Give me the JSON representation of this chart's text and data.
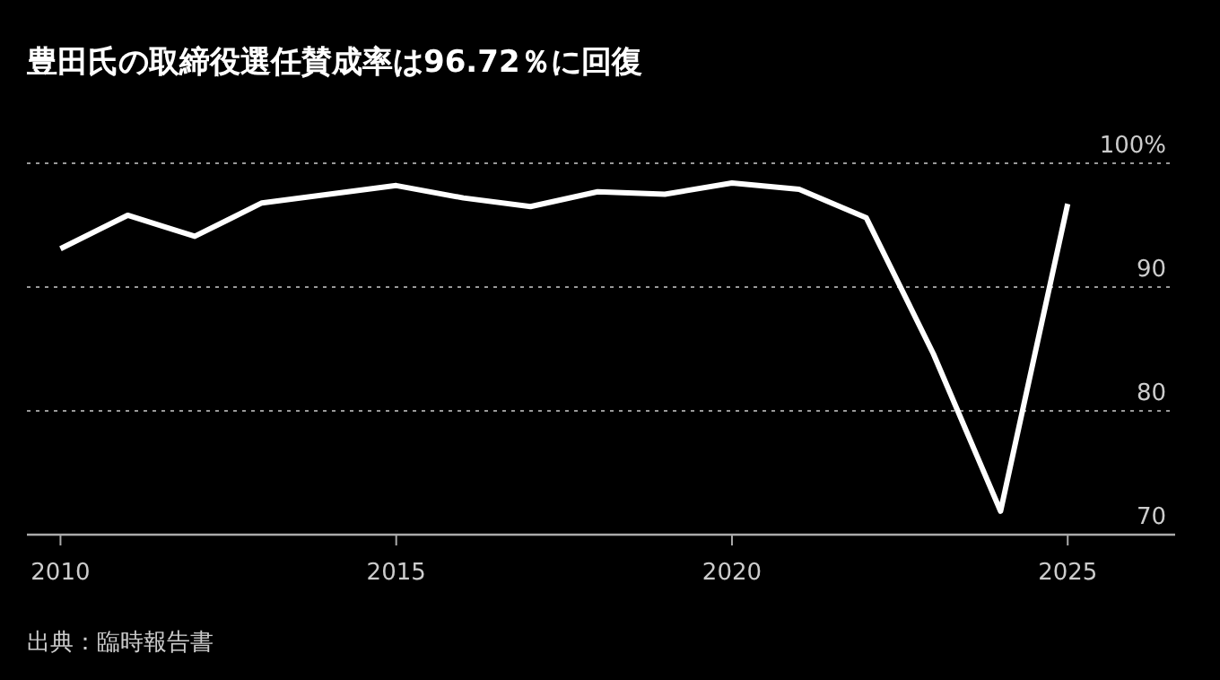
{
  "chart_data": {
    "type": "line",
    "title": "豊田氏の取締役選任賛成率は96.72％に回復",
    "x": [
      2010,
      2011,
      2012,
      2013,
      2014,
      2015,
      2016,
      2017,
      2018,
      2019,
      2020,
      2021,
      2022,
      2023,
      2024,
      2025
    ],
    "series": [
      {
        "color": "#ffffff",
        "values": [
          93.1,
          95.8,
          94.1,
          96.8,
          97.5,
          98.2,
          97.2,
          96.5,
          97.7,
          97.5,
          98.4,
          97.9,
          95.6,
          84.6,
          71.9,
          96.72
        ]
      }
    ],
    "xlim": [
      2009.5,
      2026.6
    ],
    "xticks": [
      2010,
      2015,
      2020,
      2025
    ],
    "ylim": [
      70,
      100
    ],
    "yticks": [
      70,
      80,
      90,
      {
        "value": 100,
        "label": "100%"
      }
    ],
    "grid": "y",
    "marker": "none",
    "line_style": "solid",
    "annotations": [
      "出典：臨時報告書"
    ]
  }
}
